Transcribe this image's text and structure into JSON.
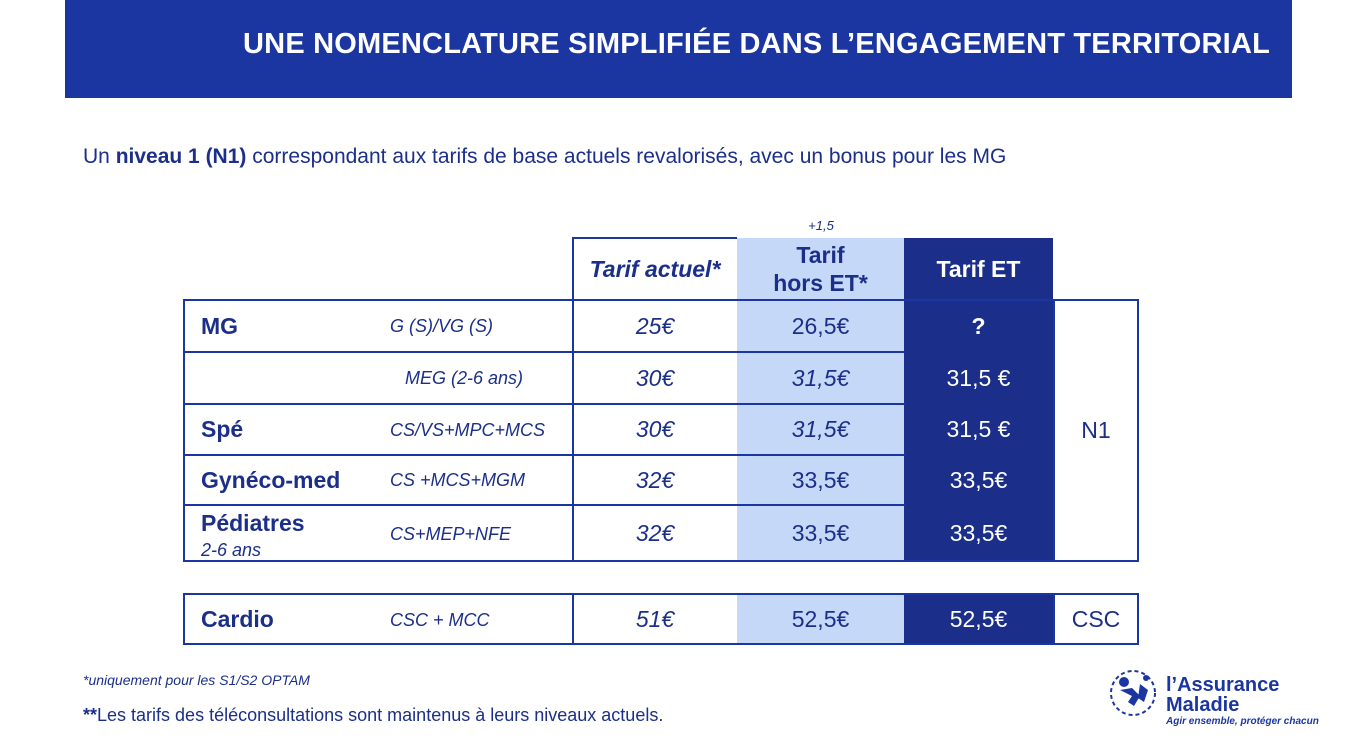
{
  "banner": {
    "title": "UNE NOMENCLATURE SIMPLIFIÉE DANS L’ENGAGEMENT TERRITORIAL"
  },
  "subtitle": {
    "prefix": "Un ",
    "bold": "niveau 1 (N1)",
    "suffix": " correspondant aux tarifs de base actuels revalorisés, avec un bonus pour les MG"
  },
  "table": {
    "bonus_note": "+1,5",
    "headers": {
      "tarif_actuel": "Tarif actuel*",
      "tarif_hors_et_1": "Tarif",
      "tarif_hors_et_2": "hors ET*",
      "tarif_et": "Tarif ET"
    },
    "rows": [
      {
        "label": "MG",
        "sublabel": "",
        "code": "G (S)/VG (S)",
        "actuel": "25€",
        "hors_et": "26,5€",
        "et": "?"
      },
      {
        "label": "",
        "sublabel": "",
        "code": "MEG (2-6 ans)",
        "actuel": "30€",
        "hors_et": "31,5€",
        "et": "31,5 €"
      },
      {
        "label": "Spé",
        "sublabel": "",
        "code": "CS/VS+MPC+MCS",
        "actuel": "30€",
        "hors_et": "31,5€",
        "et": "31,5 €"
      },
      {
        "label": "Gynéco-med",
        "sublabel": "",
        "code": "CS +MCS+MGM",
        "actuel": "32€",
        "hors_et": "33,5€",
        "et": "33,5€"
      },
      {
        "label": "Pédiatres",
        "sublabel": "2-6 ans",
        "code": "CS+MEP+NFE",
        "actuel": "32€",
        "hors_et": "33,5€",
        "et": "33,5€"
      }
    ],
    "level_n1": "N1",
    "cardio": {
      "label": "Cardio",
      "code": "CSC + MCC",
      "actuel": "51€",
      "hors_et": "52,5€",
      "et": "52,5€",
      "level": "CSC"
    }
  },
  "footnotes": {
    "note1": "*uniquement pour les S1/S2 OPTAM",
    "note2_bold": "**",
    "note2_text": "Les tarifs des téléconsultations sont maintenus à leurs niveaux actuels."
  },
  "logo": {
    "line1": "l’Assurance",
    "line2": "Maladie",
    "tagline": "Agir ensemble, protéger chacun",
    "icon": "assurance-maladie-logo-icon"
  },
  "colors": {
    "banner": "#1b36a0",
    "text": "#1b2f8a",
    "light_column": "#c5d8f7",
    "dark_column": "#1b2f8a"
  }
}
